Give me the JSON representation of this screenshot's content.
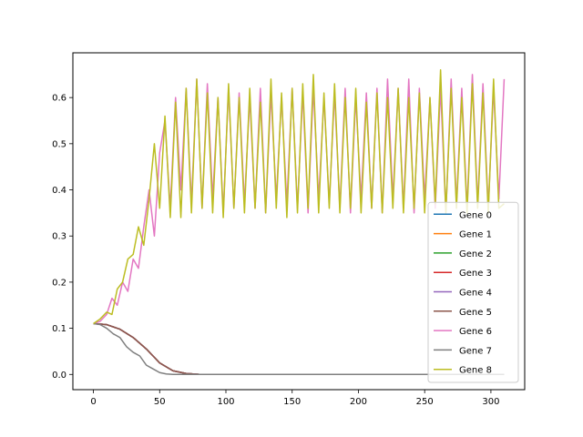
{
  "chart_data": {
    "type": "line",
    "title": "",
    "xlabel": "",
    "ylabel": "",
    "xlim": [
      -15.5,
      325.5
    ],
    "ylim": [
      -0.033,
      0.697
    ],
    "xticks": [
      0,
      50,
      100,
      150,
      200,
      250,
      300
    ],
    "yticks": [
      0.0,
      0.1,
      0.2,
      0.3,
      0.4,
      0.5,
      0.6
    ],
    "ytick_labels": [
      "0.0",
      "0.1",
      "0.2",
      "0.3",
      "0.4",
      "0.5",
      "0.6"
    ],
    "grid": false,
    "legend": "lower-right",
    "series": [
      {
        "name": "Gene 0",
        "color": "#1f77b4",
        "x": [
          0,
          10,
          20,
          30,
          40,
          50,
          60,
          70,
          80,
          310
        ],
        "values": [
          0.11,
          0.108,
          0.098,
          0.08,
          0.055,
          0.025,
          0.008,
          0.002,
          0.0,
          0.0
        ]
      },
      {
        "name": "Gene 1",
        "color": "#ff7f0e",
        "x": [
          0,
          10,
          20,
          30,
          40,
          50,
          60,
          70,
          80,
          310
        ],
        "values": [
          0.11,
          0.108,
          0.098,
          0.08,
          0.055,
          0.025,
          0.008,
          0.002,
          0.0,
          0.0
        ]
      },
      {
        "name": "Gene 2",
        "color": "#2ca02c",
        "x": [
          0,
          10,
          20,
          30,
          40,
          50,
          60,
          70,
          80,
          310
        ],
        "values": [
          0.11,
          0.108,
          0.098,
          0.08,
          0.055,
          0.025,
          0.008,
          0.002,
          0.0,
          0.0
        ]
      },
      {
        "name": "Gene 3",
        "color": "#d62728",
        "x": [
          0,
          10,
          20,
          30,
          40,
          50,
          60,
          70,
          80,
          310
        ],
        "values": [
          0.11,
          0.108,
          0.098,
          0.08,
          0.055,
          0.025,
          0.008,
          0.002,
          0.0,
          0.0
        ]
      },
      {
        "name": "Gene 4",
        "color": "#9467bd",
        "x": [
          0,
          10,
          20,
          30,
          40,
          50,
          60,
          70,
          80,
          310
        ],
        "values": [
          0.11,
          0.108,
          0.098,
          0.08,
          0.055,
          0.025,
          0.008,
          0.002,
          0.0,
          0.0
        ]
      },
      {
        "name": "Gene 5",
        "color": "#8c564b",
        "x": [
          0,
          10,
          20,
          30,
          40,
          50,
          60,
          70,
          80,
          310
        ],
        "values": [
          0.11,
          0.108,
          0.098,
          0.08,
          0.055,
          0.025,
          0.008,
          0.002,
          0.0,
          0.0
        ]
      },
      {
        "name": "Gene 6",
        "color": "#e377c2",
        "x": [
          0,
          5,
          10,
          14,
          18,
          22,
          26,
          30,
          34,
          38,
          42,
          46,
          50,
          54,
          58,
          62,
          66,
          70,
          74,
          78,
          82,
          86,
          90,
          94,
          98,
          102,
          106,
          110,
          114,
          118,
          122,
          126,
          130,
          134,
          138,
          142,
          146,
          150,
          154,
          158,
          162,
          166,
          170,
          174,
          178,
          182,
          186,
          190,
          194,
          198,
          202,
          206,
          210,
          214,
          218,
          222,
          226,
          230,
          234,
          238,
          242,
          246,
          250,
          254,
          258,
          262,
          266,
          270,
          274,
          278,
          282,
          286,
          290,
          294,
          298,
          302,
          306,
          310
        ],
        "values": [
          0.11,
          0.115,
          0.13,
          0.165,
          0.15,
          0.2,
          0.18,
          0.25,
          0.23,
          0.32,
          0.4,
          0.3,
          0.48,
          0.55,
          0.36,
          0.6,
          0.4,
          0.62,
          0.37,
          0.64,
          0.36,
          0.63,
          0.38,
          0.6,
          0.35,
          0.62,
          0.36,
          0.61,
          0.37,
          0.6,
          0.36,
          0.62,
          0.35,
          0.61,
          0.38,
          0.6,
          0.37,
          0.62,
          0.36,
          0.61,
          0.35,
          0.62,
          0.38,
          0.6,
          0.37,
          0.61,
          0.36,
          0.62,
          0.35,
          0.6,
          0.38,
          0.61,
          0.36,
          0.62,
          0.35,
          0.64,
          0.38,
          0.62,
          0.36,
          0.64,
          0.35,
          0.62,
          0.38,
          0.6,
          0.36,
          0.62,
          0.35,
          0.64,
          0.37,
          0.62,
          0.36,
          0.65,
          0.37,
          0.63,
          0.36,
          0.62,
          0.38,
          0.64
        ]
      },
      {
        "name": "Gene 7",
        "color": "#7f7f7f",
        "x": [
          0,
          5,
          10,
          15,
          20,
          25,
          30,
          35,
          40,
          45,
          50,
          55,
          60,
          310
        ],
        "values": [
          0.11,
          0.108,
          0.1,
          0.088,
          0.08,
          0.06,
          0.048,
          0.04,
          0.02,
          0.012,
          0.004,
          0.001,
          0.0,
          0.0
        ]
      },
      {
        "name": "Gene 8",
        "color": "#bcbd22",
        "x": [
          0,
          5,
          10,
          14,
          18,
          22,
          26,
          30,
          34,
          38,
          42,
          46,
          50,
          54,
          58,
          62,
          66,
          70,
          74,
          78,
          82,
          86,
          90,
          94,
          98,
          102,
          106,
          110,
          114,
          118,
          122,
          126,
          130,
          134,
          138,
          142,
          146,
          150,
          154,
          158,
          162,
          166,
          170,
          174,
          178,
          182,
          186,
          190,
          194,
          198,
          202,
          206,
          210,
          214,
          218,
          222,
          226,
          230,
          234,
          238,
          242,
          246,
          250,
          254,
          258,
          262,
          266,
          270,
          274,
          278,
          282,
          286,
          290,
          294,
          298,
          302,
          306,
          310
        ],
        "values": [
          0.11,
          0.12,
          0.135,
          0.13,
          0.185,
          0.2,
          0.25,
          0.26,
          0.32,
          0.28,
          0.38,
          0.5,
          0.36,
          0.56,
          0.34,
          0.59,
          0.34,
          0.62,
          0.35,
          0.64,
          0.36,
          0.61,
          0.35,
          0.6,
          0.34,
          0.63,
          0.36,
          0.6,
          0.35,
          0.62,
          0.36,
          0.59,
          0.35,
          0.64,
          0.36,
          0.61,
          0.34,
          0.62,
          0.35,
          0.63,
          0.36,
          0.65,
          0.35,
          0.61,
          0.36,
          0.63,
          0.35,
          0.6,
          0.36,
          0.62,
          0.35,
          0.59,
          0.36,
          0.61,
          0.35,
          0.6,
          0.36,
          0.62,
          0.35,
          0.6,
          0.36,
          0.61,
          0.35,
          0.6,
          0.37,
          0.66,
          0.35,
          0.62,
          0.36,
          0.6,
          0.35,
          0.63,
          0.36,
          0.61,
          0.35,
          0.64,
          0.36,
          0.37
        ]
      }
    ]
  }
}
